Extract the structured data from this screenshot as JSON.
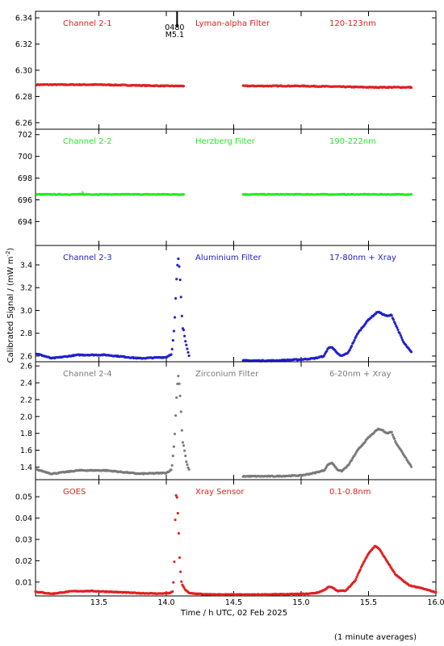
{
  "figure": {
    "ylabel": "Calibrated Signal  / (mW m",
    "ylabel_sup": "-2",
    "ylabel_end": ")",
    "xlabel": "Time / h UTC, 02 Feb 2025",
    "footnote": "(1 minute averages)",
    "flare_marker": {
      "time": 14.08,
      "label_top": "0480",
      "label_bottom": "M5.1"
    }
  },
  "chart_data": [
    {
      "type": "scatter",
      "name": "channel-2-1",
      "labels": [
        "Channel 2-1",
        "Lyman-alpha Filter",
        "120-123nm"
      ],
      "color": "#e02020",
      "ylim": [
        6.255,
        6.345
      ],
      "yticks": [
        6.26,
        6.28,
        6.3,
        6.32,
        6.34
      ],
      "ytick_labels": [
        "6.26",
        "6.28",
        "6.30",
        "6.32",
        "6.34"
      ],
      "segments": [
        {
          "x": [
            13.04,
            13.5,
            14.0,
            14.13
          ],
          "y": [
            6.289,
            6.289,
            6.288,
            6.288
          ]
        },
        {
          "x": [
            14.57,
            15.0,
            15.5,
            15.82
          ],
          "y": [
            6.288,
            6.288,
            6.287,
            6.287
          ]
        }
      ],
      "noise": 0.0003
    },
    {
      "type": "scatter",
      "name": "channel-2-2",
      "labels": [
        "Channel 2-2",
        "Herzberg Filter",
        "190-222nm"
      ],
      "color": "#22ee22",
      "ylim": [
        691.8,
        702.5
      ],
      "yticks": [
        694,
        696,
        698,
        700,
        702
      ],
      "ytick_labels": [
        "694",
        "696",
        "698",
        "700",
        "702"
      ],
      "segments": [
        {
          "x": [
            13.04,
            14.13
          ],
          "y": [
            696.5,
            696.5
          ]
        },
        {
          "x": [
            14.57,
            15.82
          ],
          "y": [
            696.5,
            696.5
          ]
        }
      ],
      "peaks": [
        {
          "x": 13.38,
          "y": 696.7
        }
      ],
      "noise": 0.03
    },
    {
      "type": "scatter",
      "name": "channel-2-3",
      "labels": [
        "Channel 2-3",
        "Aluminium Filter",
        "17-80nm + Xray"
      ],
      "color": "#2020cc",
      "ylim": [
        2.55,
        3.57
      ],
      "yticks": [
        2.6,
        2.8,
        3.0,
        3.2,
        3.4
      ],
      "ytick_labels": [
        "2.6",
        "2.8",
        "3.0",
        "3.2",
        "3.4"
      ],
      "segments": [
        {
          "x": [
            13.04,
            13.15,
            13.35,
            13.55,
            13.8,
            14.0,
            14.04,
            14.06,
            14.08,
            14.09,
            14.1,
            14.11,
            14.12,
            14.13,
            14.14,
            14.15,
            14.17
          ],
          "y": [
            2.62,
            2.58,
            2.61,
            2.61,
            2.58,
            2.59,
            2.62,
            2.86,
            3.37,
            3.46,
            3.33,
            3.1,
            2.85,
            2.83,
            2.74,
            2.69,
            2.6
          ]
        },
        {
          "x": [
            14.57,
            14.8,
            15.0,
            15.1,
            15.17,
            15.2,
            15.23,
            15.27,
            15.3,
            15.35,
            15.42,
            15.5,
            15.57,
            15.6,
            15.64,
            15.67,
            15.7,
            15.76,
            15.82
          ],
          "y": [
            2.56,
            2.56,
            2.57,
            2.58,
            2.6,
            2.67,
            2.68,
            2.62,
            2.6,
            2.63,
            2.8,
            2.92,
            2.99,
            2.97,
            2.95,
            2.96,
            2.88,
            2.72,
            2.63
          ]
        }
      ],
      "noise": 0.004
    },
    {
      "type": "scatter",
      "name": "channel-2-4",
      "labels": [
        "Channel 2-4",
        "Zirconium Filter",
        "6-20nm + Xray"
      ],
      "color": "#7a7a7a",
      "ylim": [
        1.25,
        2.65
      ],
      "yticks": [
        1.4,
        1.6,
        1.8,
        2.0,
        2.2,
        2.4,
        2.6
      ],
      "ytick_labels": [
        "1.4",
        "1.6",
        "1.8",
        "2.0",
        "2.2",
        "2.4",
        "2.6"
      ],
      "segments": [
        {
          "x": [
            13.04,
            13.15,
            13.35,
            13.55,
            13.8,
            14.0,
            14.04,
            14.06,
            14.08,
            14.09,
            14.1,
            14.11,
            14.12,
            14.13,
            14.14,
            14.15,
            14.17
          ],
          "y": [
            1.37,
            1.32,
            1.36,
            1.36,
            1.32,
            1.33,
            1.37,
            1.7,
            2.35,
            2.49,
            2.32,
            2.03,
            1.7,
            1.65,
            1.55,
            1.45,
            1.36
          ]
        },
        {
          "x": [
            14.57,
            14.8,
            15.0,
            15.1,
            15.17,
            15.2,
            15.23,
            15.27,
            15.3,
            15.35,
            15.42,
            15.5,
            15.57,
            15.6,
            15.64,
            15.67,
            15.7,
            15.76,
            15.82
          ],
          "y": [
            1.29,
            1.29,
            1.3,
            1.33,
            1.36,
            1.43,
            1.45,
            1.37,
            1.35,
            1.42,
            1.6,
            1.75,
            1.85,
            1.84,
            1.8,
            1.82,
            1.7,
            1.55,
            1.4
          ]
        }
      ],
      "noise": 0.005
    },
    {
      "type": "scatter",
      "name": "goes",
      "labels": [
        "GOES",
        "Xray Sensor",
        "0.1-0.8nm"
      ],
      "color": "#e02020",
      "ylim": [
        0.0035,
        0.058
      ],
      "yticks": [
        0.01,
        0.02,
        0.03,
        0.04,
        0.05
      ],
      "ytick_labels": [
        "0.01",
        "0.02",
        "0.03",
        "0.04",
        "0.05"
      ],
      "xlim": [
        13.03,
        16.0
      ],
      "xticks": [
        13.5,
        14.0,
        14.5,
        15.0,
        15.5,
        16.0
      ],
      "xtick_labels": [
        "13.5",
        "14.0",
        "14.5",
        "15.0",
        "15.5",
        "16.0"
      ],
      "segments": [
        {
          "x": [
            13.03,
            13.15,
            13.3,
            13.45,
            13.6,
            13.8,
            13.95,
            14.02,
            14.05,
            14.06,
            14.07,
            14.08,
            14.09,
            14.1,
            14.11,
            14.12,
            14.14,
            14.17,
            14.3,
            14.6,
            14.9,
            15.05,
            15.12,
            15.18,
            15.2,
            15.23,
            15.27,
            15.33,
            15.4,
            15.45,
            15.5,
            15.55,
            15.58,
            15.62,
            15.7,
            15.8,
            15.9,
            16.0
          ],
          "y": [
            0.0055,
            0.0045,
            0.0057,
            0.0058,
            0.0054,
            0.0048,
            0.0046,
            0.0048,
            0.0055,
            0.02,
            0.051,
            0.0495,
            0.0375,
            0.02,
            0.0108,
            0.0085,
            0.0065,
            0.0048,
            0.0042,
            0.0041,
            0.0043,
            0.0045,
            0.005,
            0.0065,
            0.0078,
            0.0075,
            0.0058,
            0.006,
            0.0105,
            0.0175,
            0.0235,
            0.027,
            0.0255,
            0.0215,
            0.0135,
            0.0085,
            0.007,
            0.0052
          ]
        }
      ],
      "noise": 0.00015
    }
  ]
}
